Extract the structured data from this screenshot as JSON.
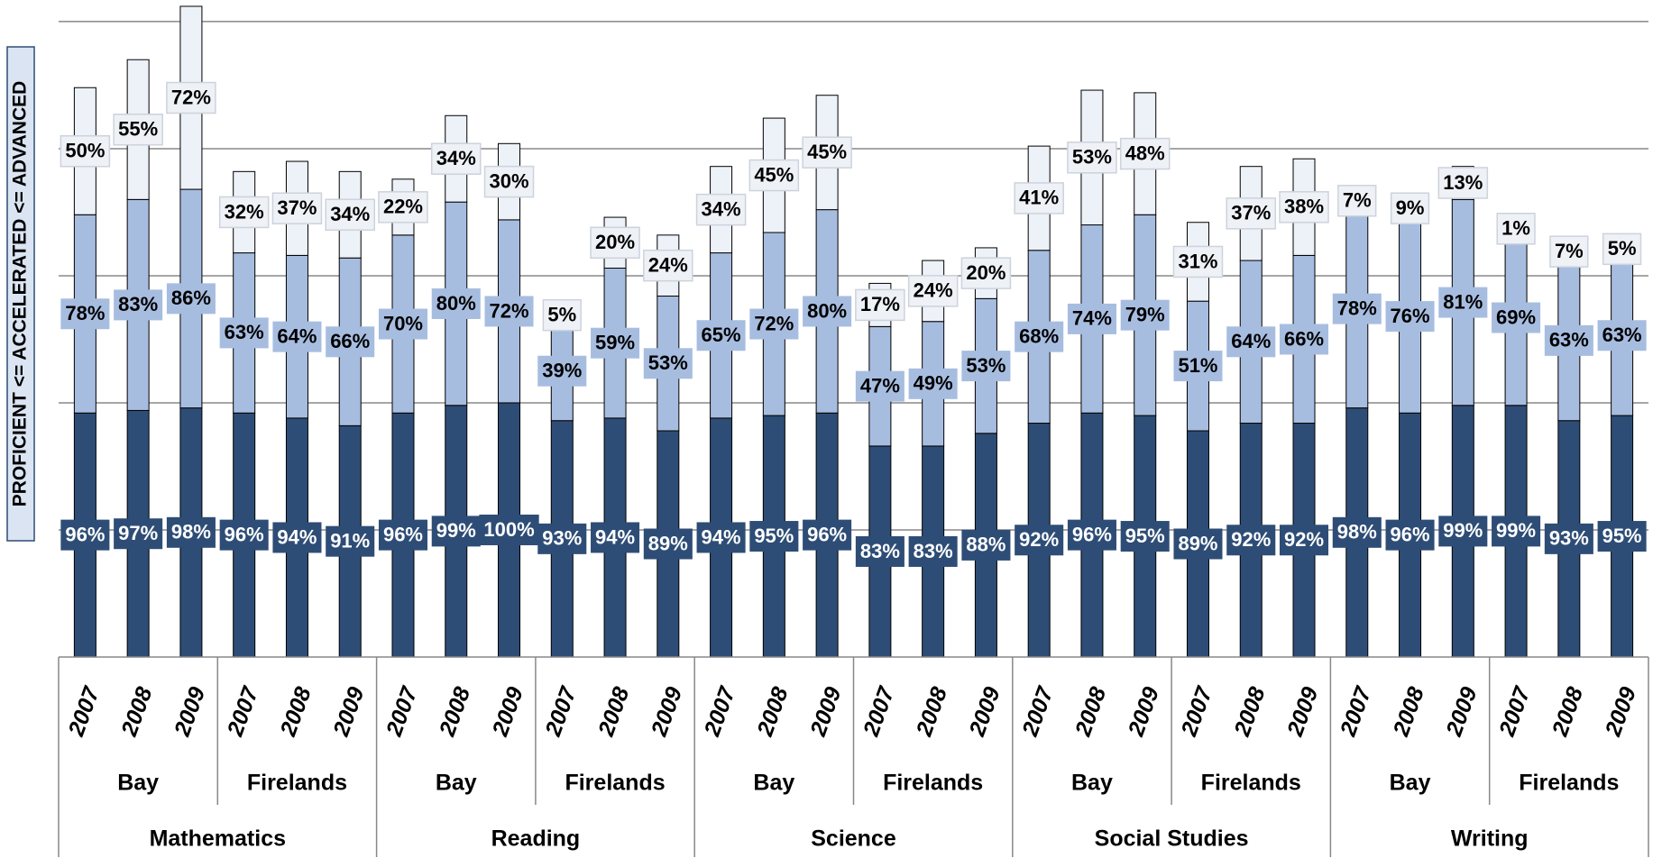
{
  "chart_data": {
    "type": "stacked-bar",
    "y_label": "PROFICIENT <= ACCELERATED <= ADVANCED",
    "categories": [
      "2007",
      "2008",
      "2009",
      "2007",
      "2008",
      "2009",
      "2007",
      "2008",
      "2009",
      "2007",
      "2008",
      "2009",
      "2007",
      "2008",
      "2009",
      "2007",
      "2008",
      "2009",
      "2007",
      "2008",
      "2009",
      "2007",
      "2008",
      "2009",
      "2007",
      "2008",
      "2009",
      "2007",
      "2008",
      "2009"
    ],
    "districts": [
      "Bay",
      "Firelands",
      "Bay",
      "Firelands",
      "Bay",
      "Firelands",
      "Bay",
      "Firelands",
      "Bay",
      "Firelands"
    ],
    "subjects": [
      "Mathematics",
      "Reading",
      "Science",
      "Social Studies",
      "Writing"
    ],
    "ylim": [
      0,
      256
    ],
    "yticks": [
      50,
      100,
      150,
      200,
      250
    ],
    "grid": true,
    "series": [
      {
        "name": "Proficient",
        "color": "#2e4d76",
        "label_color": "#ffffff",
        "values": [
          96,
          97,
          98,
          96,
          94,
          91,
          96,
          99,
          100,
          93,
          94,
          89,
          94,
          95,
          96,
          83,
          83,
          88,
          92,
          96,
          95,
          89,
          92,
          92,
          98,
          96,
          99,
          99,
          93,
          95
        ],
        "value_labels": [
          "96%",
          "97%",
          "98%",
          "96%",
          "94%",
          "91%",
          "96%",
          "99%",
          "100%",
          "93%",
          "94%",
          "89%",
          "94%",
          "95%",
          "96%",
          "83%",
          "83%",
          "88%",
          "92%",
          "96%",
          "95%",
          "89%",
          "92%",
          "92%",
          "98%",
          "96%",
          "99%",
          "99%",
          "93%",
          "95%"
        ]
      },
      {
        "name": "Accelerated",
        "color": "#a7bde0",
        "label_color": "#000000",
        "values": [
          78,
          83,
          86,
          63,
          64,
          66,
          70,
          80,
          72,
          39,
          59,
          53,
          65,
          72,
          80,
          47,
          49,
          53,
          68,
          74,
          79,
          51,
          64,
          66,
          78,
          76,
          81,
          69,
          63,
          63
        ],
        "value_labels": [
          "78%",
          "83%",
          "86%",
          "63%",
          "64%",
          "66%",
          "70%",
          "80%",
          "72%",
          "39%",
          "59%",
          "53%",
          "65%",
          "72%",
          "80%",
          "47%",
          "49%",
          "53%",
          "68%",
          "74%",
          "79%",
          "51%",
          "64%",
          "66%",
          "78%",
          "76%",
          "81%",
          "69%",
          "63%",
          "63%"
        ]
      },
      {
        "name": "Advanced",
        "color": "#edf1f8",
        "label_color": "#000000",
        "values": [
          50,
          55,
          72,
          32,
          37,
          34,
          22,
          34,
          30,
          5,
          20,
          24,
          34,
          45,
          45,
          17,
          24,
          20,
          41,
          53,
          48,
          31,
          37,
          38,
          7,
          9,
          13,
          1,
          7,
          5
        ],
        "value_labels": [
          "50%",
          "55%",
          "72%",
          "32%",
          "37%",
          "34%",
          "22%",
          "34%",
          "30%",
          "5%",
          "20%",
          "24%",
          "34%",
          "45%",
          "45%",
          "17%",
          "24%",
          "20%",
          "41%",
          "53%",
          "48%",
          "31%",
          "37%",
          "38%",
          "7%",
          "9%",
          "13%",
          "1%",
          "7%",
          "5%"
        ]
      }
    ]
  }
}
